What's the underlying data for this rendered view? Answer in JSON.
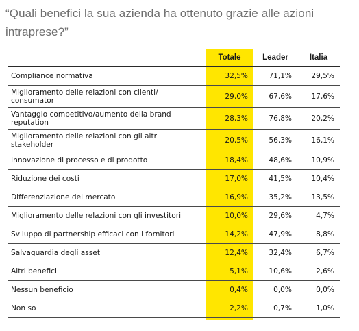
{
  "question": "“Quali benefici la sua azienda ha ottenuto grazie alle azioni intraprese?”",
  "headers": {
    "totale": "Totale",
    "leader": "Leader",
    "italia": "Italia"
  },
  "rows": [
    {
      "label": "Compliance normativa",
      "totale": "32,5%",
      "leader": "71,1%",
      "italia": "29,5%"
    },
    {
      "label": "Miglioramento delle relazioni con clienti/ consumatori",
      "totale": "29,0%",
      "leader": "67,6%",
      "italia": "17,6%"
    },
    {
      "label": "Vantaggio competitivo/aumento della brand reputation",
      "totale": "28,3%",
      "leader": "76,8%",
      "italia": "20,2%"
    },
    {
      "label": "Miglioramento delle relazioni con gli altri stakeholder",
      "totale": "20,5%",
      "leader": "56,3%",
      "italia": "16,1%"
    },
    {
      "label": "Innovazione di processo e di prodotto",
      "totale": "18,4%",
      "leader": "48,6%",
      "italia": "10,9%"
    },
    {
      "label": "Riduzione dei costi",
      "totale": "17,0%",
      "leader": "41,5%",
      "italia": "10,4%"
    },
    {
      "label": "Differenziazione del mercato",
      "totale": "16,9%",
      "leader": "35,2%",
      "italia": "13,5%"
    },
    {
      "label": "Miglioramento delle relazioni con gli investitori",
      "totale": "10,0%",
      "leader": "29,6%",
      "italia": "4,7%"
    },
    {
      "label": "Sviluppo di partnership efficaci con i fornitori",
      "totale": "14,2%",
      "leader": "47,9%",
      "italia": "8,8%"
    },
    {
      "label": "Salvaguardia degli asset",
      "totale": "12,4%",
      "leader": "32,4%",
      "italia": "6,7%"
    },
    {
      "label": "Altri benefici",
      "totale": "5,1%",
      "leader": "10,6%",
      "italia": "2,6%"
    },
    {
      "label": "Nessun beneficio",
      "totale": "0,4%",
      "leader": "0,0%",
      "italia": "0,0%"
    },
    {
      "label": "Non so",
      "totale": "2,2%",
      "leader": "0,7%",
      "italia": "1,0%"
    }
  ],
  "colors": {
    "highlight": "#ffe600",
    "rule": "#4a4a4a",
    "question_text": "#6e6e6e"
  }
}
